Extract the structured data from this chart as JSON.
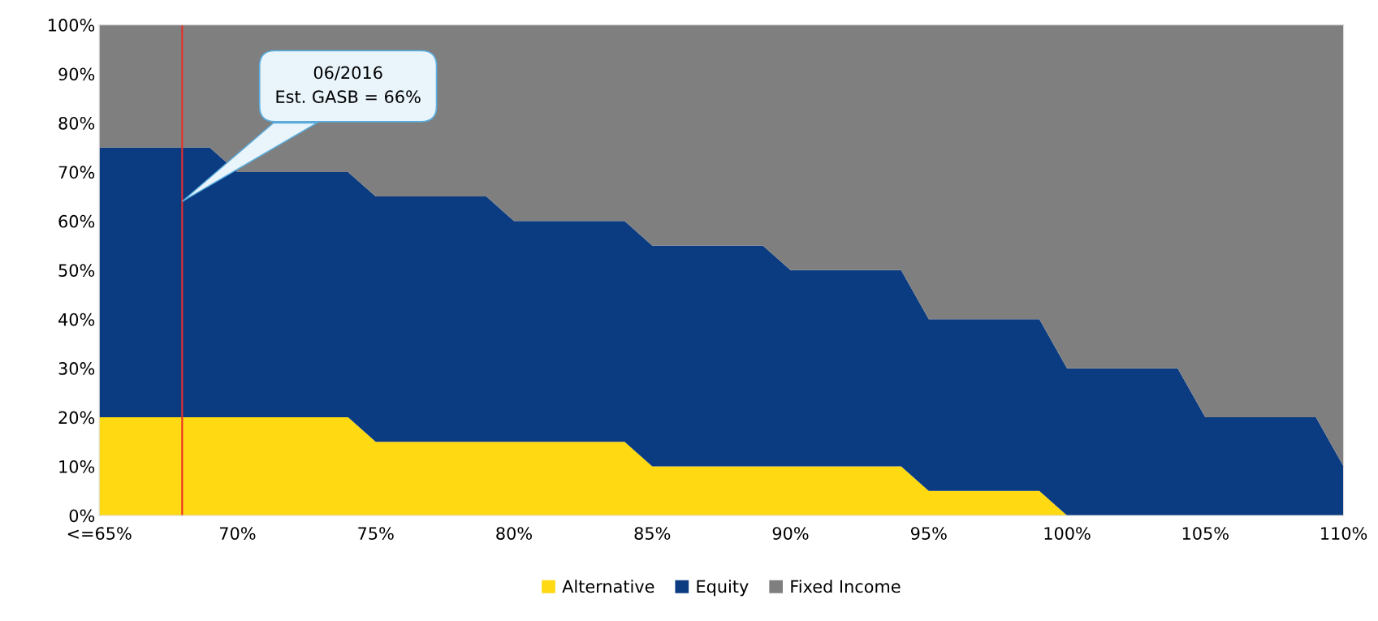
{
  "chart_data": {
    "type": "area",
    "stacked": true,
    "x": [
      65,
      66,
      67,
      68,
      69,
      70,
      71,
      72,
      73,
      74,
      75,
      76,
      77,
      78,
      79,
      80,
      81,
      82,
      83,
      84,
      85,
      86,
      87,
      88,
      89,
      90,
      91,
      92,
      93,
      94,
      95,
      96,
      97,
      98,
      99,
      100,
      101,
      102,
      103,
      104,
      105,
      106,
      107,
      108,
      109,
      110
    ],
    "series": [
      {
        "name": "Alternative",
        "color": "#ffd912",
        "values": [
          20,
          20,
          20,
          20,
          20,
          20,
          20,
          20,
          20,
          20,
          15,
          15,
          15,
          15,
          15,
          15,
          15,
          15,
          15,
          15,
          10,
          10,
          10,
          10,
          10,
          10,
          10,
          10,
          10,
          10,
          5,
          5,
          5,
          5,
          5,
          0,
          0,
          0,
          0,
          0,
          0,
          0,
          0,
          0,
          0,
          0
        ]
      },
      {
        "name": "Equity",
        "color": "#0b3b80",
        "values": [
          55,
          55,
          55,
          55,
          55,
          50,
          50,
          50,
          50,
          50,
          50,
          50,
          50,
          50,
          50,
          45,
          45,
          45,
          45,
          45,
          45,
          45,
          45,
          45,
          45,
          40,
          40,
          40,
          40,
          40,
          35,
          35,
          35,
          35,
          35,
          30,
          30,
          30,
          30,
          30,
          20,
          20,
          20,
          20,
          20,
          10
        ]
      },
      {
        "name": "Fixed Income",
        "color": "#7f7f7f",
        "values": [
          25,
          25,
          25,
          25,
          25,
          30,
          30,
          30,
          30,
          30,
          35,
          35,
          35,
          35,
          35,
          40,
          40,
          40,
          40,
          40,
          45,
          45,
          45,
          45,
          45,
          50,
          50,
          50,
          50,
          50,
          60,
          60,
          60,
          60,
          60,
          70,
          70,
          70,
          70,
          70,
          80,
          80,
          80,
          80,
          80,
          90
        ]
      }
    ],
    "xlim": [
      65,
      110
    ],
    "xticks": [
      {
        "value": 65,
        "label": "<=65%"
      },
      {
        "value": 70,
        "label": "70%"
      },
      {
        "value": 75,
        "label": "75%"
      },
      {
        "value": 80,
        "label": "80%"
      },
      {
        "value": 85,
        "label": "85%"
      },
      {
        "value": 90,
        "label": "90%"
      },
      {
        "value": 95,
        "label": "95%"
      },
      {
        "value": 100,
        "label": "100%"
      },
      {
        "value": 105,
        "label": "105%"
      },
      {
        "value": 110,
        "label": "110%"
      }
    ],
    "ylim": [
      0,
      100
    ],
    "yticks": [
      {
        "value": 0,
        "label": "0%"
      },
      {
        "value": 10,
        "label": "10%"
      },
      {
        "value": 20,
        "label": "20%"
      },
      {
        "value": 30,
        "label": "30%"
      },
      {
        "value": 40,
        "label": "40%"
      },
      {
        "value": 50,
        "label": "50%"
      },
      {
        "value": 60,
        "label": "60%"
      },
      {
        "value": 70,
        "label": "70%"
      },
      {
        "value": 80,
        "label": "80%"
      },
      {
        "value": 90,
        "label": "90%"
      },
      {
        "value": 100,
        "label": "100%"
      }
    ],
    "ref_lines": [
      {
        "axis": "x",
        "value": 68,
        "color": "#e8302a"
      }
    ],
    "annotations": [
      "06/2016\nEst. GASB = 66%"
    ],
    "legend": "bottom",
    "grid": false
  }
}
